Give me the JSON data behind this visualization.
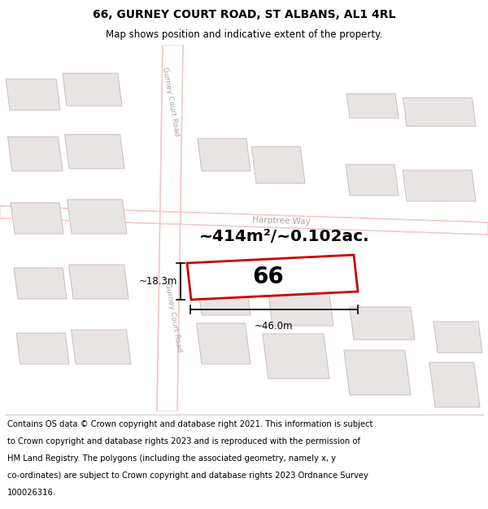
{
  "title": "66, GURNEY COURT ROAD, ST ALBANS, AL1 4RL",
  "subtitle": "Map shows position and indicative extent of the property.",
  "footer_lines": [
    "Contains OS data © Crown copyright and database right 2021. This information is subject",
    "to Crown copyright and database rights 2023 and is reproduced with the permission of",
    "HM Land Registry. The polygons (including the associated geometry, namely x, y",
    "co-ordinates) are subject to Crown copyright and database rights 2023 Ordnance Survey",
    "100026316."
  ],
  "area_label": "~414m²/~0.102ac.",
  "property_number": "66",
  "width_label": "~46.0m",
  "height_label": "~18.3m",
  "bg_color": "#ffffff",
  "road_color": "#f5c8c8",
  "building_fill": "#e8e4e4",
  "building_stroke": "#ccbbbb",
  "property_fill": "#ffffff",
  "property_stroke": "#cc0000",
  "road_label_color": "#bbbbbb",
  "title_fontsize": 10,
  "subtitle_fontsize": 8.5,
  "footer_fontsize": 7.2
}
